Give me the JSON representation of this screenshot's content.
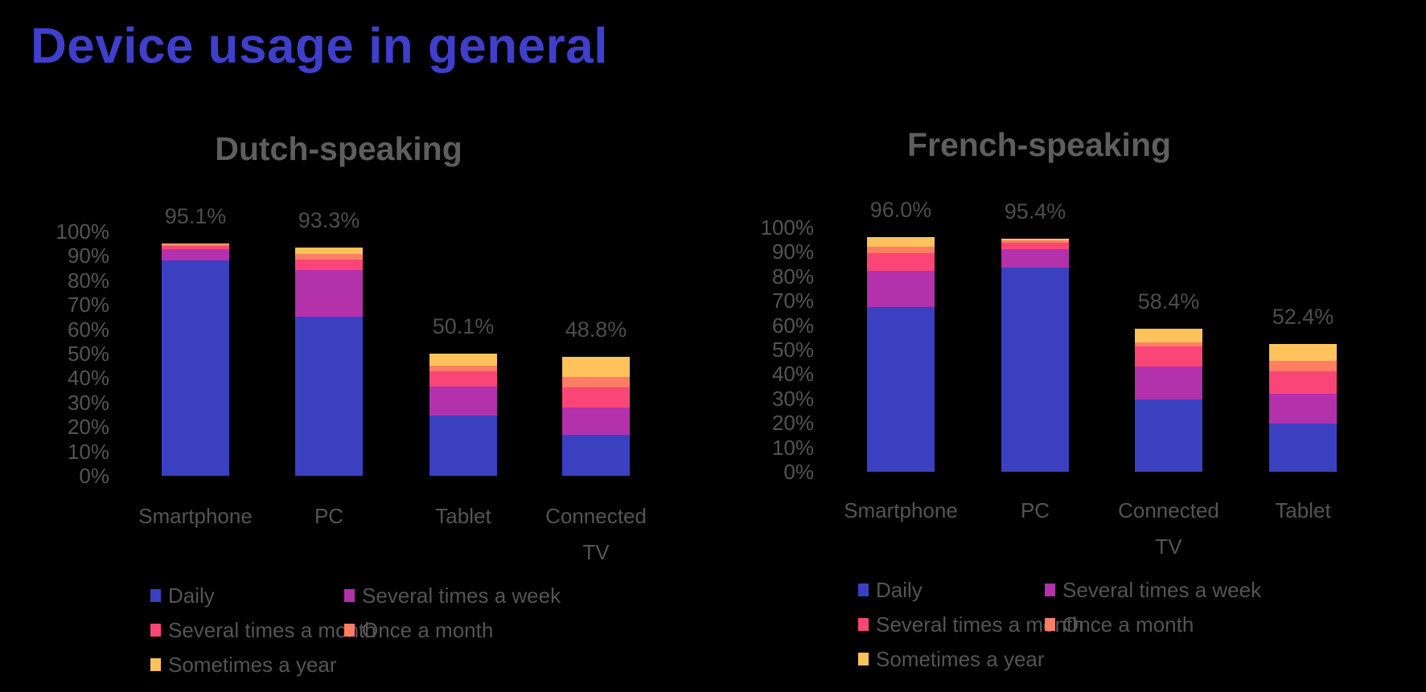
{
  "page_title": "Device usage in general",
  "colors": {
    "background": "#000000",
    "title": "#3F3FCB",
    "subtitle": "#5E5E5E",
    "axis_text": "#545454",
    "data_label": "#4D4D4D",
    "series": [
      "#3B40C1",
      "#B331AB",
      "#FA4677",
      "#FD7E63",
      "#FFC25C"
    ]
  },
  "chart_data": [
    {
      "type": "bar",
      "stacked": true,
      "title": "Dutch-speaking",
      "categories": [
        "Smartphone",
        "PC",
        "Tablet",
        "Connected TV"
      ],
      "totals_pct": [
        95.1,
        93.3,
        50.1,
        48.8
      ],
      "total_labels": [
        "95.1%",
        "93.3%",
        "50.1%",
        "48.8%"
      ],
      "series": [
        {
          "name": "Daily",
          "values": [
            88.2,
            65.0,
            24.6,
            16.9
          ]
        },
        {
          "name": "Several times a week",
          "values": [
            4.6,
            19.1,
            12.0,
            11.2
          ]
        },
        {
          "name": "Several times a month",
          "values": [
            1.3,
            4.3,
            6.1,
            8.1
          ]
        },
        {
          "name": "Once a month",
          "values": [
            0.6,
            2.3,
            2.4,
            4.4
          ]
        },
        {
          "name": "Sometimes a year",
          "values": [
            0.4,
            2.6,
            5.0,
            8.2
          ]
        }
      ],
      "yticks": [
        "0%",
        "10%",
        "20%",
        "30%",
        "40%",
        "50%",
        "60%",
        "70%",
        "80%",
        "90%",
        "100%"
      ],
      "ylim": [
        0,
        100
      ],
      "grid": false,
      "legend_position": "bottom-left"
    },
    {
      "type": "bar",
      "stacked": true,
      "title": "French-speaking",
      "categories": [
        "Smartphone",
        "PC",
        "Connected TV",
        "Tablet"
      ],
      "totals_pct": [
        96.0,
        95.4,
        58.4,
        52.4
      ],
      "total_labels": [
        "96.0%",
        "95.4%",
        "58.4%",
        "52.4%"
      ],
      "series": [
        {
          "name": "Daily",
          "values": [
            67.5,
            83.4,
            29.5,
            19.6
          ]
        },
        {
          "name": "Several times a week",
          "values": [
            14.8,
            7.7,
            13.6,
            12.3
          ]
        },
        {
          "name": "Several times a month",
          "values": [
            7.2,
            2.6,
            8.3,
            9.1
          ]
        },
        {
          "name": "Once a month",
          "values": [
            2.7,
            1.0,
            1.4,
            4.4
          ]
        },
        {
          "name": "Sometimes a year",
          "values": [
            3.8,
            0.7,
            5.6,
            7.0
          ]
        }
      ],
      "yticks": [
        "0%",
        "10%",
        "20%",
        "30%",
        "40%",
        "50%",
        "60%",
        "70%",
        "80%",
        "90%",
        "100%"
      ],
      "ylim": [
        0,
        100
      ],
      "grid": false,
      "legend_position": "bottom-left"
    }
  ]
}
